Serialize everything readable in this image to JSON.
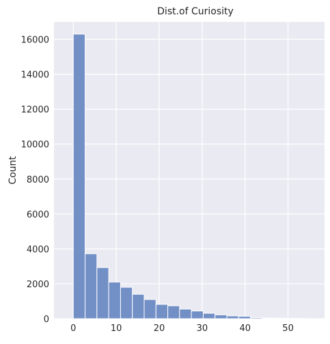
{
  "chart_data": {
    "type": "bar",
    "title": "Dist.of Curiosity",
    "xlabel": "",
    "ylabel": "Count",
    "xlim": [
      -4.5,
      58.5
    ],
    "ylim": [
      0,
      17000
    ],
    "x_ticks": [
      0,
      10,
      20,
      30,
      40,
      50
    ],
    "y_ticks": [
      0,
      2000,
      4000,
      6000,
      8000,
      10000,
      12000,
      14000,
      16000
    ],
    "grid": true,
    "bins": [
      {
        "x0": 0,
        "x1": 2.75,
        "count": 16300
      },
      {
        "x0": 2.75,
        "x1": 5.5,
        "count": 3720
      },
      {
        "x0": 5.5,
        "x1": 8.25,
        "count": 2930
      },
      {
        "x0": 8.25,
        "x1": 11.0,
        "count": 2100
      },
      {
        "x0": 11.0,
        "x1": 13.75,
        "count": 1800
      },
      {
        "x0": 13.75,
        "x1": 16.5,
        "count": 1400
      },
      {
        "x0": 16.5,
        "x1": 19.25,
        "count": 1100
      },
      {
        "x0": 19.25,
        "x1": 22.0,
        "count": 820
      },
      {
        "x0": 22.0,
        "x1": 24.75,
        "count": 740
      },
      {
        "x0": 24.75,
        "x1": 27.5,
        "count": 550
      },
      {
        "x0": 27.5,
        "x1": 30.25,
        "count": 440
      },
      {
        "x0": 30.25,
        "x1": 33.0,
        "count": 310
      },
      {
        "x0": 33.0,
        "x1": 35.75,
        "count": 220
      },
      {
        "x0": 35.75,
        "x1": 38.5,
        "count": 160
      },
      {
        "x0": 38.5,
        "x1": 41.25,
        "count": 140
      },
      {
        "x0": 41.25,
        "x1": 44.0,
        "count": 60
      },
      {
        "x0": 44.0,
        "x1": 46.75,
        "count": 40
      },
      {
        "x0": 46.75,
        "x1": 49.5,
        "count": 25
      },
      {
        "x0": 49.5,
        "x1": 52.25,
        "count": 12
      },
      {
        "x0": 52.25,
        "x1": 55.0,
        "count": 6
      }
    ],
    "colors": {
      "bar": "#7390c6",
      "bar_edge": "#ffffff",
      "plot_bg": "#eaeaf2",
      "grid": "#ffffff"
    }
  }
}
